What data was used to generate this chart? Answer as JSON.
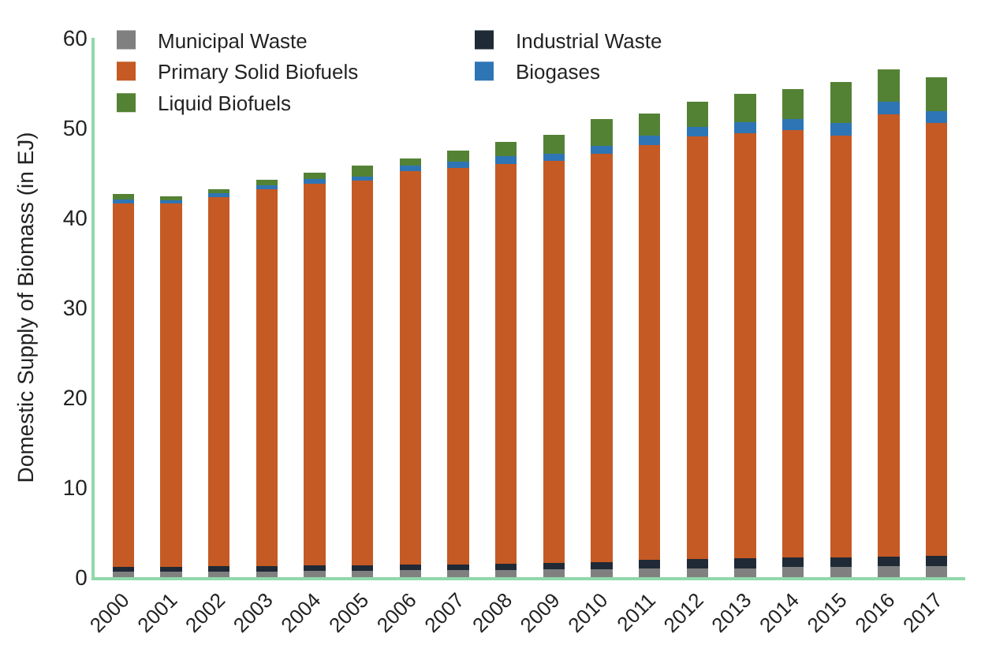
{
  "chart_data": {
    "type": "bar",
    "stacked": true,
    "ylabel": "Domestic Supply of Biomass (in EJ)",
    "categories": [
      "2000",
      "2001",
      "2002",
      "2003",
      "2004",
      "2005",
      "2006",
      "2007",
      "2008",
      "2009",
      "2010",
      "2011",
      "2012",
      "2013",
      "2014",
      "2015",
      "2016",
      "2017"
    ],
    "series": [
      {
        "name": "Municipal Waste",
        "color": "#808080",
        "values": [
          0.6,
          0.6,
          0.6,
          0.6,
          0.7,
          0.7,
          0.8,
          0.8,
          0.8,
          0.9,
          0.9,
          1.0,
          1.0,
          1.0,
          1.1,
          1.1,
          1.2,
          1.2
        ]
      },
      {
        "name": "Industrial Waste",
        "color": "#1f2a36",
        "values": [
          0.5,
          0.5,
          0.6,
          0.6,
          0.6,
          0.6,
          0.6,
          0.6,
          0.7,
          0.7,
          0.8,
          0.9,
          1.0,
          1.1,
          1.1,
          1.1,
          1.1,
          1.2
        ]
      },
      {
        "name": "Primary Solid Biofuels",
        "color": "#c55a24",
        "values": [
          40.6,
          40.5,
          41.1,
          42.0,
          42.5,
          42.8,
          43.8,
          44.1,
          44.5,
          44.7,
          45.4,
          46.2,
          47.0,
          47.3,
          47.5,
          46.9,
          49.2,
          48.1
        ]
      },
      {
        "name": "Biogases",
        "color": "#2e75b6",
        "values": [
          0.3,
          0.3,
          0.4,
          0.4,
          0.5,
          0.5,
          0.6,
          0.7,
          0.8,
          0.8,
          0.9,
          1.0,
          1.1,
          1.2,
          1.3,
          1.4,
          1.4,
          1.3
        ]
      },
      {
        "name": "Liquid Biofuels",
        "color": "#548235",
        "values": [
          0.6,
          0.5,
          0.5,
          0.6,
          0.7,
          1.2,
          0.8,
          1.3,
          1.6,
          2.1,
          3.0,
          2.5,
          2.8,
          3.2,
          3.3,
          4.6,
          3.6,
          3.8
        ]
      }
    ],
    "ylim": [
      0,
      60
    ],
    "yticks": [
      0,
      10,
      20,
      30,
      40,
      50,
      60
    ],
    "legend": "top"
  }
}
